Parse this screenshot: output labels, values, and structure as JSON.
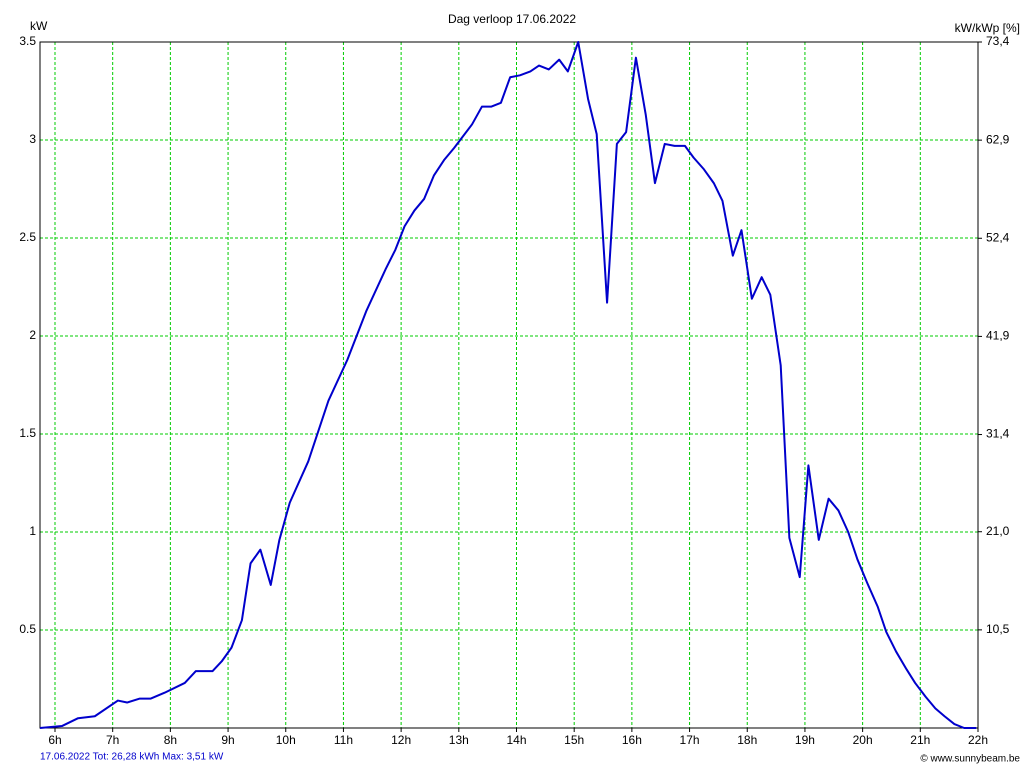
{
  "chart_data": {
    "type": "line",
    "title": "Dag  verloop 17.06.2022",
    "y_label": "kW",
    "y2_label": "kW/kWp [%]",
    "footer_left": "17.06.2022 Tot: 26,28 kWh Max: 3,51 kW",
    "footer_right": "© www.sunnybeam.be",
    "x": [
      5.74,
      6.12,
      6.4,
      6.69,
      7.09,
      7.25,
      7.47,
      7.66,
      7.9,
      8.25,
      8.44,
      8.73,
      8.89,
      9.06,
      9.24,
      9.39,
      9.56,
      9.74,
      9.89,
      10.07,
      10.39,
      10.74,
      11.07,
      11.4,
      11.73,
      11.9,
      12.06,
      12.23,
      12.4,
      12.57,
      12.75,
      12.92,
      13.23,
      13.4,
      13.56,
      13.73,
      13.89,
      14.06,
      14.24,
      14.39,
      14.56,
      14.74,
      14.89,
      15.07,
      15.24,
      15.39,
      15.57,
      15.74,
      15.9,
      16.07,
      16.24,
      16.4,
      16.57,
      16.74,
      16.92,
      17.07,
      17.25,
      17.42,
      17.57,
      17.75,
      17.9,
      18.08,
      18.25,
      18.4,
      18.58,
      18.73,
      18.91,
      19.06,
      19.24,
      19.41,
      19.58,
      19.75,
      19.91,
      20.08,
      20.26,
      20.41,
      20.58,
      20.76,
      20.91,
      21.09,
      21.26,
      21.42,
      21.59,
      21.76,
      21.97
    ],
    "values": [
      0,
      0.01,
      0.05,
      0.06,
      0.14,
      0.13,
      0.15,
      0.15,
      0.18,
      0.23,
      0.29,
      0.29,
      0.34,
      0.41,
      0.55,
      0.84,
      0.91,
      0.73,
      0.96,
      1.15,
      1.36,
      1.67,
      1.88,
      2.13,
      2.34,
      2.44,
      2.56,
      2.64,
      2.7,
      2.82,
      2.9,
      2.96,
      3.08,
      3.17,
      3.17,
      3.19,
      3.32,
      3.33,
      3.35,
      3.38,
      3.36,
      3.41,
      3.35,
      3.5,
      3.21,
      3.03,
      2.17,
      2.98,
      3.04,
      3.42,
      3.13,
      2.78,
      2.98,
      2.97,
      2.97,
      2.91,
      2.85,
      2.78,
      2.69,
      2.41,
      2.54,
      2.19,
      2.3,
      2.21,
      1.85,
      0.97,
      0.77,
      1.34,
      0.96,
      1.17,
      1.11,
      1.0,
      0.86,
      0.74,
      0.62,
      0.49,
      0.39,
      0.3,
      0.23,
      0.16,
      0.1,
      0.06,
      0.02,
      0,
      0
    ],
    "color": "#0000cc",
    "xlim": [
      5.74,
      22
    ],
    "xticks": [
      {
        "value": 6,
        "label": "6h"
      },
      {
        "value": 7,
        "label": "7h"
      },
      {
        "value": 8,
        "label": "8h"
      },
      {
        "value": 9,
        "label": "9h"
      },
      {
        "value": 10,
        "label": "10h"
      },
      {
        "value": 11,
        "label": "11h"
      },
      {
        "value": 12,
        "label": "12h"
      },
      {
        "value": 13,
        "label": "13h"
      },
      {
        "value": 14,
        "label": "14h"
      },
      {
        "value": 15,
        "label": "15h"
      },
      {
        "value": 16,
        "label": "16h"
      },
      {
        "value": 17,
        "label": "17h"
      },
      {
        "value": 18,
        "label": "18h"
      },
      {
        "value": 19,
        "label": "19h"
      },
      {
        "value": 20,
        "label": "20h"
      },
      {
        "value": 21,
        "label": "21h"
      },
      {
        "value": 22,
        "label": "22h"
      }
    ],
    "ylim": [
      0,
      3.5
    ],
    "yticks": [
      0.5,
      1,
      1.5,
      2,
      2.5,
      3,
      3.5
    ],
    "y2lim": [
      0,
      73.4
    ],
    "y2ticks": [
      {
        "value": 10.5,
        "label": "10,5"
      },
      {
        "value": 21.0,
        "label": "21,0"
      },
      {
        "value": 31.4,
        "label": "31,4"
      },
      {
        "value": 41.9,
        "label": "41,9"
      },
      {
        "value": 52.4,
        "label": "52,4"
      },
      {
        "value": 62.9,
        "label": "62,9"
      },
      {
        "value": 73.4,
        "label": "73,4"
      }
    ],
    "grid": true,
    "grid_color": "#00cc00"
  }
}
